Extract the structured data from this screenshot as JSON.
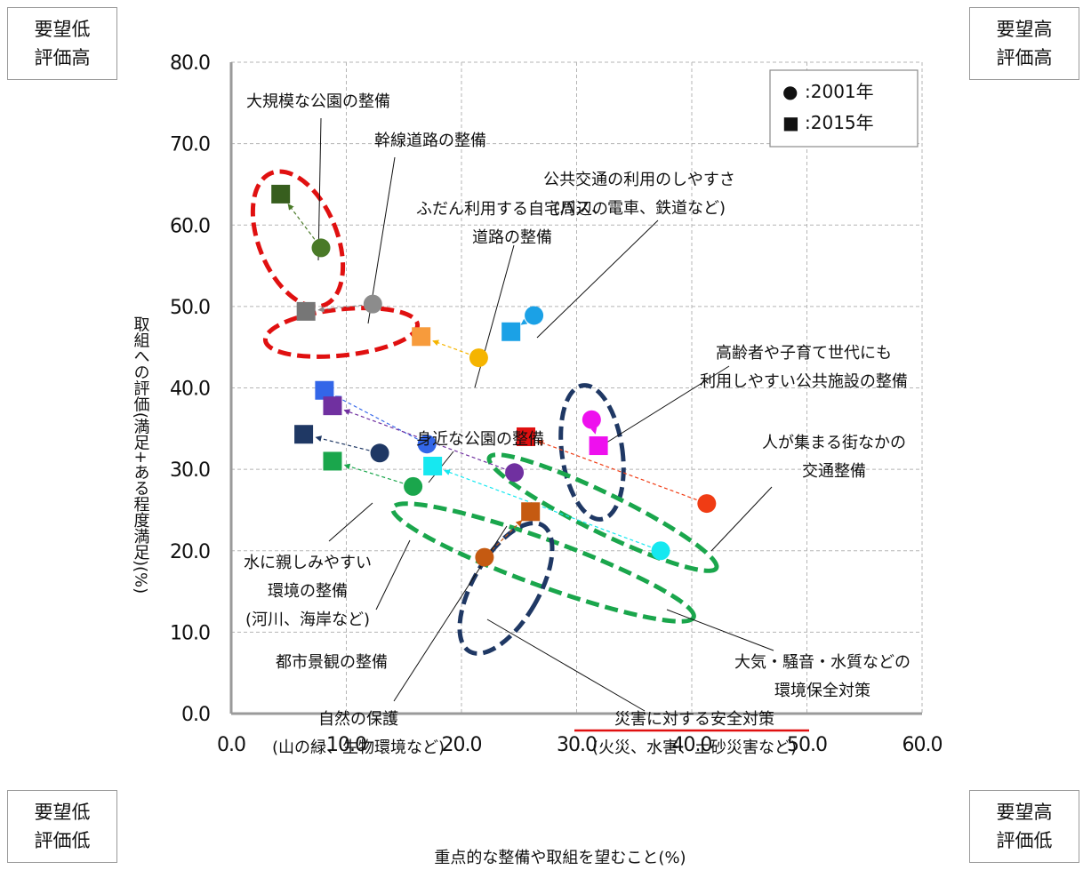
{
  "corners": {
    "top_left": [
      "要望低",
      "評価高"
    ],
    "top_right": [
      "要望高",
      "評価高"
    ],
    "bottom_left": [
      "要望低",
      "評価低"
    ],
    "bottom_right": [
      "要望高",
      "評価低"
    ]
  },
  "chart_data": {
    "type": "scatter",
    "xlabel": "重点的な整備や取組を望むこと(%)",
    "ylabel": "取組への評価(満足+ある程度満足)(%)",
    "xlim": [
      0,
      60
    ],
    "ylim": [
      0,
      80
    ],
    "x_ticks": [
      "0.0",
      "10.0",
      "20.0",
      "30.0",
      "40.0",
      "50.0",
      "60.0"
    ],
    "y_ticks": [
      "0.0",
      "10.0",
      "20.0",
      "30.0",
      "40.0",
      "50.0",
      "60.0",
      "70.0",
      "80.0"
    ],
    "grid": true,
    "legend": [
      {
        "marker": "●",
        "label": ":2001年"
      },
      {
        "marker": "■",
        "label": ":2015年"
      }
    ],
    "legend_position": "top-right",
    "series": [
      {
        "label": [
          "大規模な公園の整備"
        ],
        "color": "#4a7a28",
        "color_2015": "#375e1e",
        "p2001": [
          7.8,
          57.2
        ],
        "p2015": [
          4.3,
          63.8
        ]
      },
      {
        "label": [
          "幹線道路の整備"
        ],
        "color": "#8c8c8c",
        "color_2015": "#767676",
        "p2001": [
          12.3,
          50.3
        ],
        "p2015": [
          6.5,
          49.4
        ]
      },
      {
        "label": [
          "ふだん利用する自宅周辺の",
          "道路の整備"
        ],
        "color": "#f5b400",
        "color_2015": "#f79b3c",
        "p2001": [
          21.5,
          43.7
        ],
        "p2015": [
          16.5,
          46.3
        ]
      },
      {
        "label": [
          "公共交通の利用のしやすさ",
          "(バス、電車、鉄道など)"
        ],
        "color": "#1ba1e6",
        "color_2015": "#1ba1e6",
        "p2001": [
          26.3,
          48.9
        ],
        "p2015": [
          24.3,
          46.9
        ]
      },
      {
        "label": [
          "高齢者や子育て世代にも",
          "利用しやすい公共施設の整備"
        ],
        "color": "#ee10ee",
        "color_2015": "#ee10ee",
        "p2001": [
          31.3,
          36.1
        ],
        "p2015": [
          31.9,
          32.9
        ]
      },
      {
        "label": [
          "人が集まる街なかの",
          "交通整備"
        ],
        "color": "#f03c14",
        "color_2015": "#e01010",
        "p2001": [
          41.3,
          25.8
        ],
        "p2015": [
          25.6,
          34.0
        ]
      },
      {
        "label": [
          "身近な公園の整備"
        ],
        "color": "#3366e8",
        "color_2015": "#3366e8",
        "p2001": [
          17.0,
          33.1
        ],
        "p2015": [
          8.1,
          39.7
        ]
      },
      {
        "label": [
          "水に親しみやすい",
          "環境の整備",
          "(河川、海岸など)"
        ],
        "color": "#1f3864",
        "color_2015": "#1f3864",
        "p2001": [
          12.9,
          32.0
        ],
        "p2015": [
          6.3,
          34.3
        ]
      },
      {
        "label": [
          "都市景観の整備"
        ],
        "color": "#1aa64c",
        "color_2015": "#1aa64c",
        "p2001": [
          15.8,
          27.9
        ],
        "p2015": [
          8.8,
          31.0
        ]
      },
      {
        "label": [
          "自然の保護",
          "(山の緑、生物環境など)"
        ],
        "color": "#7030a0",
        "color_2015": "#7030a0",
        "p2001": [
          24.6,
          29.6
        ],
        "p2015": [
          8.8,
          37.8
        ]
      },
      {
        "label": [
          "大気・騒音・水質などの",
          "環境保全対策"
        ],
        "color": "#16e8f0",
        "color_2015": "#16e8f0",
        "p2001": [
          37.3,
          20.0
        ],
        "p2015": [
          17.5,
          30.4
        ]
      },
      {
        "label": [
          "災害に対する安全対策",
          "(火災、水害、土砂災害など)"
        ],
        "color": "#c55a11",
        "color_2015": "#c55a11",
        "p2001": [
          22.0,
          19.2
        ],
        "p2015": [
          26.0,
          24.8
        ]
      }
    ]
  }
}
